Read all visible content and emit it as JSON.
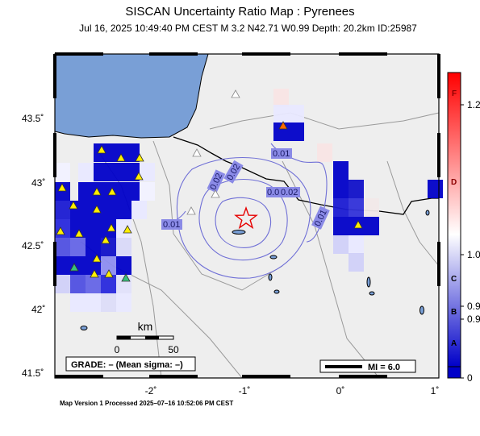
{
  "map": {
    "title": "SISCAN Uncertainty Ratio Map : Pyrenees",
    "subtitle": "Jul 16, 2025 10:49:40 PM CEST   M 3.2   N42.71 W0.99   Depth: 20.2km   ID:25987",
    "lon_ticks": [
      "-2˚",
      "-1˚",
      "0˚",
      "1˚"
    ],
    "lat_ticks": [
      "43.5˚",
      "43˚",
      "42.5˚",
      "42˚",
      "41.5˚"
    ],
    "scale_bar": {
      "unit": "km",
      "ticks": [
        "0",
        "50"
      ]
    },
    "grade_text": "GRADE: – (Mean sigma: –)",
    "mi_legend": "MI = 6.0",
    "contour_labels": [
      "0.01",
      "0.02",
      "0.01",
      "0.02",
      "0.02",
      "0.01",
      "0.01"
    ],
    "colorbar": {
      "letters": [
        "F",
        "D",
        "C",
        "B",
        "A"
      ],
      "values": [
        "1.2",
        "1.0",
        "0.9",
        "0.9",
        "0"
      ],
      "colors": {
        "low": "#0000c8",
        "mid": "#ffffff",
        "high": "#ff0000"
      }
    },
    "epicenter": {
      "lat": 42.71,
      "lon": -0.99
    },
    "footer": "Map Version 1 Processed 2025–07–16 10:52:06 PM CEST"
  }
}
